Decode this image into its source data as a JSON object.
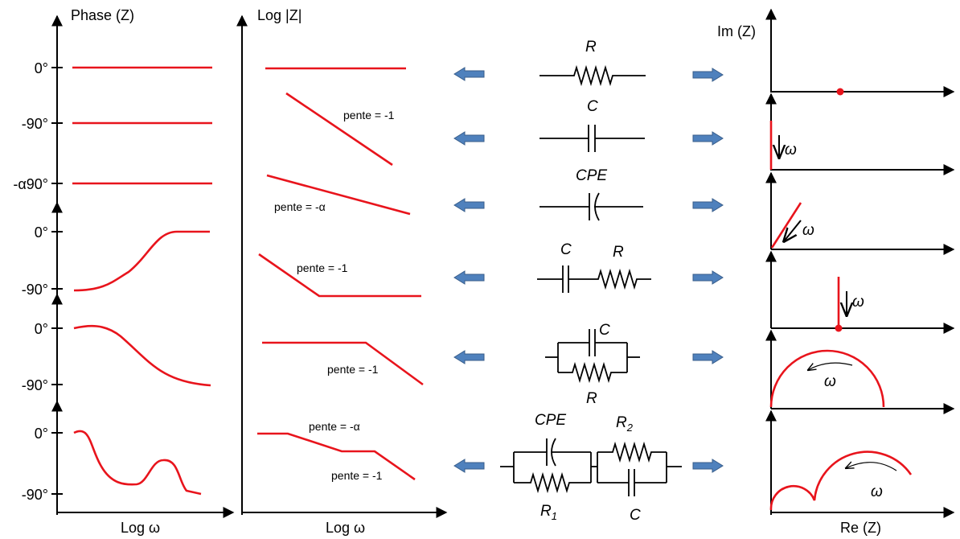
{
  "phase_panel": {
    "title": "Phase (Z)",
    "xlabel": "Log ω",
    "ticks": [
      "0°",
      "-90°",
      "-α90°",
      "0°",
      "-90°",
      "0°",
      "-90°",
      "0°",
      "-90°"
    ]
  },
  "magnitude_panel": {
    "title": "Log |Z|",
    "xlabel": "Log ω",
    "slope_labels": [
      "pente = -1",
      "pente = -α",
      "pente = -1",
      "pente = -1",
      "pente = -α",
      "pente = -1"
    ]
  },
  "circuits": {
    "resistor": "R",
    "capacitor": "C",
    "cpe": "CPE",
    "series_c": "C",
    "series_r": "R",
    "parallel_c": "C",
    "parallel_r": "R",
    "mixed_cpe": "CPE",
    "mixed_r1_base": "R",
    "mixed_r1_sub": "1",
    "mixed_r2_base": "R",
    "mixed_r2_sub": "2",
    "mixed_c": "C"
  },
  "nyquist_panel": {
    "ylabel": "Im (Z)",
    "xlabel": "Re (Z)",
    "omega": "ω"
  },
  "colors": {
    "curve": "#e8141c",
    "arrow": "#4f81bd"
  }
}
